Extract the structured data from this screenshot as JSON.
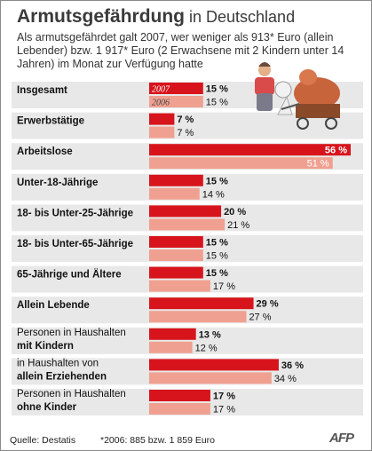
{
  "header": {
    "title_bold": "Armutsgefährdung",
    "title_rest": " in Deutschland",
    "subtitle": "Als armutsgefährdet galt 2007, wer weniger als 913* Euro (allein Lebender) bzw. 1 917* Euro (2 Erwachsene mit 2 Kindern unter 14 Jahren) im Monat zur Verfügung hatte"
  },
  "footer": {
    "source": "Quelle: Destatis",
    "footnote": "*2006: 885 bzw. 1 859 Euro",
    "logo": "AFP"
  },
  "colors": {
    "bar_2007": "#d7141b",
    "bar_2006": "#f0a090",
    "band": "#e8e8e8"
  },
  "chart_data": {
    "type": "bar",
    "orientation": "horizontal",
    "series_labels": [
      "2007",
      "2006"
    ],
    "categories": [
      {
        "lines": [
          {
            "text": "Insgesamt",
            "bold": true
          }
        ]
      },
      {
        "lines": [
          {
            "text": "Erwerbstätige",
            "bold": true
          }
        ]
      },
      {
        "lines": [
          {
            "text": "Arbeitslose",
            "bold": true
          }
        ]
      },
      {
        "lines": [
          {
            "text": "Unter-18-Jährige",
            "bold": true
          }
        ]
      },
      {
        "lines": [
          {
            "text": "18- bis Unter-25-Jährige",
            "bold": true
          }
        ]
      },
      {
        "lines": [
          {
            "text": "18- bis Unter-65-Jährige",
            "bold": true
          }
        ]
      },
      {
        "lines": [
          {
            "text": "65-Jährige und Ältere",
            "bold": true
          }
        ]
      },
      {
        "lines": [
          {
            "text": "Allein Lebende",
            "bold": true
          }
        ]
      },
      {
        "lines": [
          {
            "text": "Personen in Haushalten",
            "bold": false
          },
          {
            "text": "mit Kindern",
            "bold": true
          }
        ]
      },
      {
        "lines": [
          {
            "text": "in Haushalten von",
            "bold": false
          },
          {
            "text": "allein Erziehenden",
            "bold": true
          }
        ]
      },
      {
        "lines": [
          {
            "text": "Personen in Haushalten",
            "bold": false
          },
          {
            "text": "ohne Kinder",
            "bold": true
          }
        ]
      }
    ],
    "series": [
      {
        "name": "2007",
        "values": [
          15,
          7,
          56,
          15,
          20,
          15,
          15,
          29,
          13,
          36,
          17
        ]
      },
      {
        "name": "2006",
        "values": [
          15,
          7,
          51,
          14,
          21,
          15,
          17,
          27,
          12,
          34,
          17
        ]
      }
    ],
    "value_suffix": " %",
    "xlim": [
      0,
      56
    ]
  }
}
